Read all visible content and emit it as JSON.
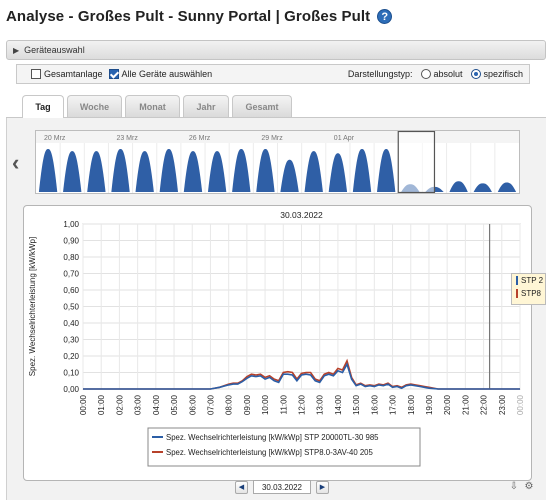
{
  "title": "Analyse - Großes Pult - Sunny Portal | Großes Pult",
  "help_icon": "question-circle-icon",
  "device_section": {
    "label": "Geräteauswahl",
    "icon": "chevron-right-icon"
  },
  "options": {
    "gesamtanlage_label": "Gesamtanlage",
    "gesamtanlage_checked": false,
    "alle_geraete_label": "Alle Geräte auswählen",
    "alle_geraete_checked": true,
    "darstellung_label": "Darstellungstyp:",
    "absolut_label": "absolut",
    "spezifisch_label": "spezifisch",
    "selected": "spezifisch"
  },
  "tabs": [
    {
      "label": "Tag",
      "active": true
    },
    {
      "label": "Woche",
      "active": false
    },
    {
      "label": "Monat",
      "active": false
    },
    {
      "label": "Jahr",
      "active": false
    },
    {
      "label": "Gesamt",
      "active": false
    }
  ],
  "overview": {
    "date_labels": [
      "20 Mrz",
      "23 Mrz",
      "26 Mrz",
      "29 Mrz",
      "01 Apr"
    ],
    "day_levels": [
      1.0,
      0.95,
      0.95,
      1.0,
      0.95,
      1.0,
      0.95,
      0.95,
      1.0,
      1.0,
      0.75,
      0.95,
      0.9,
      1.0,
      1.0,
      0.18,
      0.12,
      0.25,
      0.2,
      0.22
    ],
    "selected_day_index": 15,
    "fill_color": "#2f5fa6"
  },
  "chart_data": {
    "type": "line",
    "title": "30.03.2022",
    "ylabel": "Spez. Wechselrichterleistung [kW/kWp]",
    "ylim": [
      0,
      1
    ],
    "yticks": [
      "0,00",
      "0,10",
      "0,20",
      "0,30",
      "0,40",
      "0,50",
      "0,60",
      "0,70",
      "0,80",
      "0,90",
      "1,00"
    ],
    "categories": [
      "00:00",
      "01:00",
      "02:00",
      "03:00",
      "04:00",
      "05:00",
      "06:00",
      "07:00",
      "08:00",
      "09:00",
      "10:00",
      "11:00",
      "12:00",
      "13:00",
      "14:00",
      "15:00",
      "16:00",
      "17:00",
      "18:00",
      "19:00",
      "20:00",
      "21:00",
      "22:00",
      "23:00",
      "00:00"
    ],
    "x": [
      0,
      1,
      2,
      3,
      4,
      5,
      6,
      7,
      7.5,
      8,
      8.25,
      8.5,
      8.75,
      9,
      9.25,
      9.5,
      9.75,
      10,
      10.25,
      10.5,
      10.75,
      11,
      11.25,
      11.5,
      11.75,
      12,
      12.25,
      12.5,
      12.75,
      13,
      13.25,
      13.5,
      13.75,
      14,
      14.25,
      14.5,
      14.75,
      15,
      15.25,
      15.5,
      15.75,
      16,
      16.25,
      16.5,
      16.75,
      17,
      17.25,
      17.5,
      17.75,
      18,
      18.25,
      18.5,
      18.75,
      19,
      19.5,
      20,
      21,
      22,
      23,
      24
    ],
    "series": [
      {
        "name": "Spez. Wechselrichterleistung [kW/kWp] STP 20000TL-30 985",
        "color": "#2b5ea6",
        "values": [
          0,
          0,
          0,
          0,
          0,
          0,
          0,
          0,
          0.01,
          0.025,
          0.03,
          0.03,
          0.045,
          0.065,
          0.08,
          0.075,
          0.08,
          0.06,
          0.07,
          0.05,
          0.04,
          0.09,
          0.09,
          0.085,
          0.05,
          0.085,
          0.09,
          0.085,
          0.05,
          0.04,
          0.08,
          0.09,
          0.08,
          0.11,
          0.1,
          0.15,
          0.06,
          0.02,
          0.03,
          0.015,
          0.02,
          0.015,
          0.025,
          0.02,
          0.03,
          0.01,
          0.015,
          0.005,
          0.02,
          0.025,
          0.02,
          0.015,
          0.01,
          0.005,
          0,
          0,
          0,
          0,
          0,
          0
        ]
      },
      {
        "name": "Spez. Wechselrichterleistung [kW/kWp] STP8.0-3AV-40 205",
        "color": "#b7412a",
        "values": [
          0,
          0,
          0,
          0,
          0,
          0,
          0,
          0,
          0.01,
          0.03,
          0.035,
          0.035,
          0.05,
          0.075,
          0.09,
          0.085,
          0.09,
          0.07,
          0.08,
          0.06,
          0.05,
          0.1,
          0.105,
          0.1,
          0.06,
          0.095,
          0.1,
          0.1,
          0.06,
          0.05,
          0.09,
          0.1,
          0.09,
          0.125,
          0.115,
          0.17,
          0.07,
          0.025,
          0.035,
          0.02,
          0.025,
          0.02,
          0.03,
          0.025,
          0.035,
          0.015,
          0.02,
          0.01,
          0.025,
          0.03,
          0.025,
          0.02,
          0.015,
          0.01,
          0,
          0,
          0,
          0,
          0,
          0
        ]
      }
    ],
    "current_time_marker": 22.33,
    "grid": true,
    "legend": "bottom"
  },
  "tooltip": {
    "labels": [
      "STP 2",
      "STP8"
    ]
  },
  "date_nav": {
    "value": "30.03.2022",
    "prev_icon": "arrow-left-icon",
    "next_icon": "arrow-right-icon"
  },
  "tools": {
    "icons": [
      "export-icon",
      "settings-icon"
    ]
  }
}
